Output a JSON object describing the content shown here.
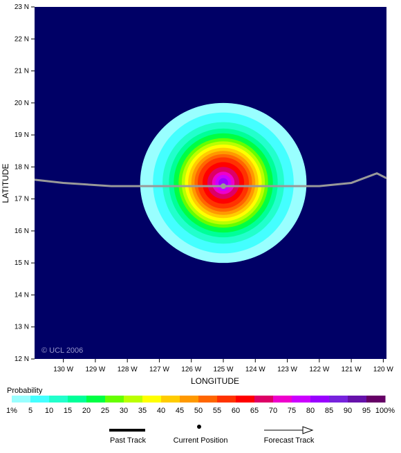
{
  "chart_data": {
    "type": "heatmap",
    "xlabel": "LONGITUDE",
    "ylabel": "LATITUDE",
    "xlim": [
      -130.9,
      -119.9
    ],
    "ylim": [
      12,
      23
    ],
    "x_ticks": [
      {
        "value": -130,
        "label": "130 W"
      },
      {
        "value": -129,
        "label": "129 W"
      },
      {
        "value": -128,
        "label": "128 W"
      },
      {
        "value": -127,
        "label": "127 W"
      },
      {
        "value": -126,
        "label": "126 W"
      },
      {
        "value": -125,
        "label": "125 W"
      },
      {
        "value": -124,
        "label": "124 W"
      },
      {
        "value": -123,
        "label": "123 W"
      },
      {
        "value": -122,
        "label": "122 W"
      },
      {
        "value": -121,
        "label": "121 W"
      },
      {
        "value": -120,
        "label": "120 W"
      }
    ],
    "y_ticks": [
      {
        "value": 12,
        "label": "12 N"
      },
      {
        "value": 13,
        "label": "13 N"
      },
      {
        "value": 14,
        "label": "14 N"
      },
      {
        "value": 15,
        "label": "15 N"
      },
      {
        "value": 16,
        "label": "16 N"
      },
      {
        "value": 17,
        "label": "17 N"
      },
      {
        "value": 18,
        "label": "18 N"
      },
      {
        "value": 19,
        "label": "19 N"
      },
      {
        "value": 20,
        "label": "20 N"
      },
      {
        "value": 21,
        "label": "21 N"
      },
      {
        "value": 22,
        "label": "22 N"
      },
      {
        "value": 23,
        "label": "23 N"
      }
    ],
    "background_color": "#000066",
    "copyright": "© UCL 2006",
    "legend": {
      "title": "Probability",
      "labels": [
        "1%",
        "5",
        "10",
        "15",
        "20",
        "25",
        "30",
        "35",
        "40",
        "45",
        "50",
        "55",
        "60",
        "65",
        "70",
        "75",
        "80",
        "85",
        "90",
        "95",
        "100%"
      ],
      "colors": [
        "#99ffff",
        "#44ffff",
        "#22ffcc",
        "#00ff99",
        "#00ff44",
        "#66ff00",
        "#bbff00",
        "#ffff00",
        "#ffcc00",
        "#ff9900",
        "#ff6600",
        "#ff3300",
        "#ff0000",
        "#dd0066",
        "#ee00cc",
        "#cc00ff",
        "#9900ff",
        "#7722dd",
        "#6611aa",
        "#660066"
      ]
    },
    "probability_field": {
      "center": [
        -125,
        17.5
      ],
      "radii_deg": [
        [
          2.6,
          2.5
        ],
        [
          2.2,
          2.2
        ],
        [
          1.9,
          1.9
        ],
        [
          1.7,
          1.7
        ],
        [
          1.55,
          1.55
        ],
        [
          1.4,
          1.4
        ],
        [
          1.3,
          1.3
        ],
        [
          1.2,
          1.2
        ],
        [
          1.1,
          1.1
        ],
        [
          1.0,
          1.0
        ],
        [
          0.9,
          0.9
        ],
        [
          0.8,
          0.8
        ],
        [
          0.65,
          0.65
        ],
        [
          0.5,
          0.5
        ],
        [
          0.35,
          0.35
        ],
        [
          0.25,
          0.25
        ],
        [
          0.15,
          0.15
        ]
      ]
    },
    "track": {
      "points": [
        [
          -130.9,
          17.6
        ],
        [
          -130,
          17.5
        ],
        [
          -128.5,
          17.4
        ],
        [
          -126,
          17.4
        ],
        [
          -125,
          17.4
        ],
        [
          -123,
          17.4
        ],
        [
          -122,
          17.4
        ],
        [
          -121,
          17.5
        ],
        [
          -120.2,
          17.8
        ],
        [
          -119.9,
          17.65
        ]
      ],
      "current_position": [
        -125,
        17.4
      ],
      "color": "#999999"
    },
    "key": {
      "past_track": "Past Track",
      "current_position": "Current Position",
      "forecast_track": "Forecast Track"
    }
  }
}
